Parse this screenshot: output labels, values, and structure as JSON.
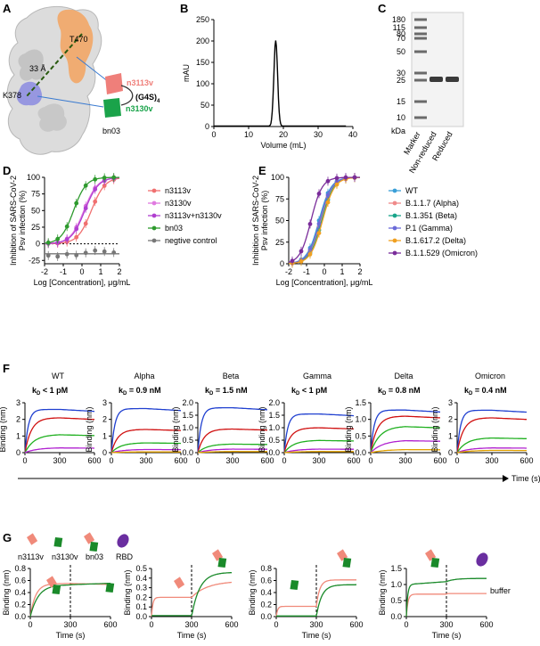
{
  "figure": {
    "panel_labels": [
      "A",
      "B",
      "C",
      "D",
      "E",
      "F",
      "G"
    ]
  },
  "panelA": {
    "labels": {
      "t470": "T470",
      "k378": "K378",
      "dist": "33 Å",
      "n3113v": "n3113v",
      "n3130v": "n3130v",
      "linker": "(G4S)",
      "linker_sub": "4",
      "bn03": "bn03"
    },
    "colors": {
      "n3113v": "#ef7f7a",
      "n3130v": "#1aa34a",
      "epitope1": "#f3a35f",
      "epitope2": "#8f8fe0"
    }
  },
  "chart_data": [
    {
      "id": "B",
      "type": "line",
      "xlabel": "Volume (mL)",
      "ylabel": "mAU",
      "xlim": [
        0,
        40
      ],
      "ylim": [
        0,
        250
      ],
      "xticks": [
        "0",
        "10",
        "20",
        "30",
        "40"
      ],
      "yticks": [
        "0",
        "50",
        "100",
        "150",
        "200",
        "250"
      ],
      "peak_x": 17.8,
      "peak_y": 200
    },
    {
      "id": "C",
      "type": "gel",
      "ylabel": "kDa",
      "marker_sizes": [
        "180",
        "115",
        "80",
        "70",
        "50",
        "30",
        "25",
        "15",
        "10"
      ],
      "lanes": [
        "Marker",
        "Non-reduced",
        "Reduced"
      ],
      "band_kda": 27
    },
    {
      "id": "D",
      "type": "line",
      "xlabel": "Log [Concentration], μg/mL",
      "ylabel": "Inhibition of SARS-CoV-2 Psv infection (%)",
      "ylabel_lines": [
        "Inhibition of SARS-CoV-2",
        "Psv infection (%)"
      ],
      "xlim": [
        -2,
        2
      ],
      "ylim": [
        -30,
        100
      ],
      "xticks": [
        "-2",
        "-1",
        "0",
        "1",
        "2"
      ],
      "yticks": [
        "-25",
        "0",
        "25",
        "50",
        "75",
        "100"
      ],
      "series": [
        {
          "name": "n3113v",
          "color": "#f07070",
          "ec50": 0.5,
          "slope": 1.2
        },
        {
          "name": "n3130v",
          "color": "#e07ae0",
          "ec50": 0.1,
          "slope": 1.2
        },
        {
          "name": "n3113v+n3130v",
          "color": "#b03fd0",
          "ec50": 0.15,
          "slope": 1.2
        },
        {
          "name": "bn03",
          "color": "#2e9a2e",
          "ec50": -0.45,
          "slope": 1.3
        },
        {
          "name": "negtive control",
          "color": "#777777",
          "flat": -15
        }
      ]
    },
    {
      "id": "E",
      "type": "line",
      "xlabel": "Log [Concentration], μg/mL",
      "ylabel": "Inhibition of SARS-CoV-2 Psv infection (%)",
      "ylabel_lines": [
        "Inhibition of SARS-CoV-2",
        "Psv infection (%)"
      ],
      "xlim": [
        -2,
        2
      ],
      "ylim": [
        0,
        100
      ],
      "xticks": [
        "-2",
        "-1",
        "0",
        "1",
        "2"
      ],
      "yticks": [
        "0",
        "25",
        "50",
        "75",
        "100"
      ],
      "series": [
        {
          "name": "WT",
          "color": "#3a9fd8",
          "ec50": -0.3,
          "slope": 1.3
        },
        {
          "name": "B.1.1.7 (Alpha)",
          "color": "#ef8a8a",
          "ec50": -0.2,
          "slope": 1.3
        },
        {
          "name": "B.1.351 (Beta)",
          "color": "#18a58a",
          "ec50": -0.15,
          "slope": 1.3
        },
        {
          "name": "P.1 (Gamma)",
          "color": "#6a6ad8",
          "ec50": -0.25,
          "slope": 1.3
        },
        {
          "name": "B.1.617.2 (Delta)",
          "color": "#f0a020",
          "ec50": -0.1,
          "slope": 1.3
        },
        {
          "name": "B.1.1.529 (Omicron)",
          "color": "#7a2c9a",
          "ec50": -0.75,
          "slope": 1.4
        }
      ]
    },
    {
      "id": "F",
      "type": "line",
      "xlabel": "Time (s)",
      "ylabel": "Binding (nm)",
      "xticks": [
        "0",
        "300",
        "600"
      ],
      "subplots": [
        {
          "title": "WT",
          "kd_sub": "D",
          "kd_val": " < 1 pM",
          "ymax": 3,
          "yticks": [
            "0",
            "1",
            "2",
            "3"
          ],
          "plateaus": [
            2.6,
            2.1,
            1.1,
            0.3
          ]
        },
        {
          "title": "Alpha",
          "kd_sub": "D",
          "kd_val": " = 0.9 nM",
          "ymax": 3,
          "yticks": [
            "0",
            "1",
            "2",
            "3"
          ],
          "plateaus": [
            2.65,
            1.4,
            0.6,
            0.2,
            0.05
          ]
        },
        {
          "title": "Beta",
          "kd_sub": "D",
          "kd_val": " = 1.5 nM",
          "ymax": 2.0,
          "yticks": [
            "0.0",
            "0.5",
            "1.0",
            "1.5",
            "2.0"
          ],
          "plateaus": [
            1.8,
            0.95,
            0.35,
            0.15,
            0.05
          ]
        },
        {
          "title": "Gamma",
          "kd_sub": "D",
          "kd_val": " < 1 pM",
          "ymax": 2.0,
          "yticks": [
            "0.0",
            "0.5",
            "1.0",
            "1.5",
            "2.0"
          ],
          "plateaus": [
            1.55,
            1.0,
            0.5,
            0.15,
            0.05
          ]
        },
        {
          "title": "Delta",
          "kd_sub": "D",
          "kd_val": " = 0.8 nM",
          "ymax": 1.5,
          "yticks": [
            "0.0",
            "0.5",
            "1.0",
            "1.5"
          ],
          "plateaus": [
            1.28,
            1.1,
            0.8,
            0.38,
            0.1
          ]
        },
        {
          "title": "Omicron",
          "kd_sub": "D",
          "kd_val": " = 0.4 nM",
          "ymax": 3,
          "yticks": [
            "0",
            "1",
            "2",
            "3"
          ],
          "plateaus": [
            2.55,
            2.1,
            0.9,
            0.3,
            0.15
          ]
        }
      ],
      "colors": [
        "#2040d0",
        "#d01010",
        "#20b020",
        "#b020d0",
        "#e0a000"
      ]
    },
    {
      "id": "G",
      "type": "line",
      "xlabel": "Time (s)",
      "ylabel": "Binding (nm)",
      "xticks": [
        "0",
        "300",
        "600"
      ],
      "legend": {
        "n3113v": "n3113v",
        "n3130v": "n3130v",
        "bn03": "bn03",
        "rbd": "RBD",
        "buffer": "buffer"
      },
      "subplots": [
        {
          "ymax": 0.8,
          "yticks": [
            "0.0",
            "0.2",
            "0.4",
            "0.6",
            "0.8"
          ]
        },
        {
          "ymax": 0.5,
          "yticks": [
            "0.0",
            "0.1",
            "0.2",
            "0.3",
            "0.4",
            "0.5"
          ]
        },
        {
          "ymax": 0.8,
          "yticks": [
            "0.0",
            "0.2",
            "0.4",
            "0.6",
            "0.8"
          ]
        },
        {
          "ymax": 1.5,
          "yticks": [
            "0.0",
            "0.5",
            "1.0",
            "1.5"
          ]
        }
      ],
      "colors": {
        "salmon": "#f08a7a",
        "green": "#1a8a2a",
        "rbd": "#6a2ea0"
      }
    }
  ]
}
